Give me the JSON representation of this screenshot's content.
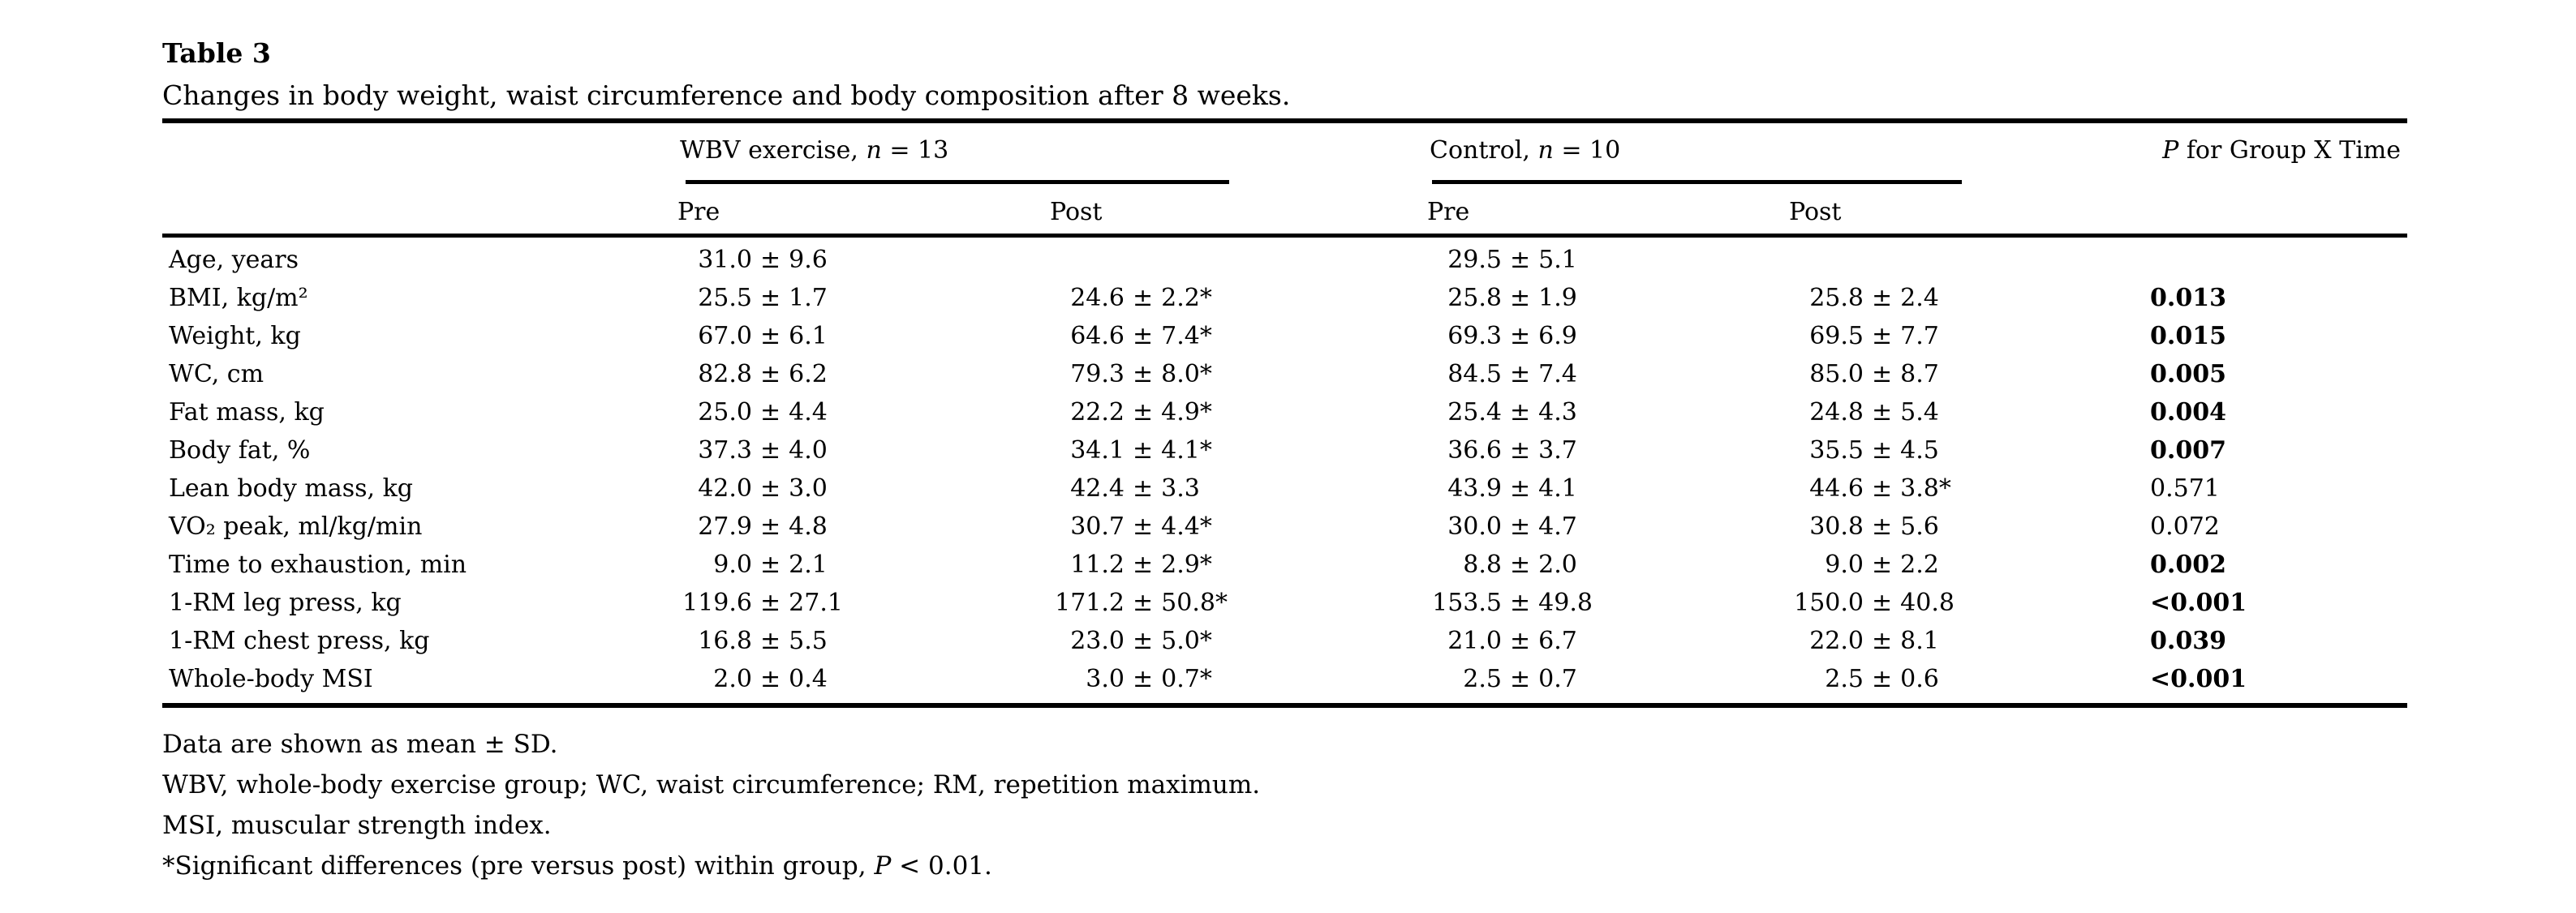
{
  "caption": {
    "label": "Table 3",
    "description": "Changes in body weight, waist circumference and body composition after 8 weeks."
  },
  "table": {
    "groups": [
      {
        "name_prefix": "WBV exercise, ",
        "n_symbol": "n",
        "n_value": " = 13"
      },
      {
        "name_prefix": "Control, ",
        "n_symbol": "n",
        "n_value": " = 10"
      }
    ],
    "p_header": {
      "symbol": "P",
      "rest": " for Group X Time"
    },
    "sub_headers": {
      "pre": "Pre",
      "post": "Post"
    },
    "rows": [
      {
        "label": "Age, years",
        "wbv_pre": "31.0 ± 9.6",
        "wbv_post": "",
        "ctrl_pre": "29.5 ± 5.1",
        "ctrl_post": "",
        "p": "",
        "p_bold": false
      },
      {
        "label": "BMI, kg/m²",
        "wbv_pre": "25.5 ± 1.7",
        "wbv_post": "24.6 ± 2.2*",
        "ctrl_pre": "25.8 ± 1.9",
        "ctrl_post": "25.8 ± 2.4",
        "p": "0.013",
        "p_bold": true
      },
      {
        "label": "Weight, kg",
        "wbv_pre": "67.0 ± 6.1",
        "wbv_post": "64.6 ± 7.4*",
        "ctrl_pre": "69.3 ± 6.9",
        "ctrl_post": "69.5 ± 7.7",
        "p": "0.015",
        "p_bold": true
      },
      {
        "label": "WC, cm",
        "wbv_pre": "82.8 ± 6.2",
        "wbv_post": "79.3 ± 8.0*",
        "ctrl_pre": "84.5 ± 7.4",
        "ctrl_post": "85.0 ± 8.7",
        "p": "0.005",
        "p_bold": true
      },
      {
        "label": "Fat mass, kg",
        "wbv_pre": "25.0 ± 4.4",
        "wbv_post": "22.2 ± 4.9*",
        "ctrl_pre": "25.4 ± 4.3",
        "ctrl_post": "24.8 ± 5.4",
        "p": "0.004",
        "p_bold": true
      },
      {
        "label": "Body fat, %",
        "wbv_pre": "37.3 ± 4.0",
        "wbv_post": "34.1 ± 4.1*",
        "ctrl_pre": "36.6 ± 3.7",
        "ctrl_post": "35.5 ± 4.5",
        "p": "0.007",
        "p_bold": true
      },
      {
        "label": "Lean body mass, kg",
        "wbv_pre": "42.0 ± 3.0",
        "wbv_post": "42.4 ± 3.3",
        "ctrl_pre": "43.9 ± 4.1",
        "ctrl_post": "44.6 ± 3.8*",
        "p": "0.571",
        "p_bold": false
      },
      {
        "label": "VO₂ peak, ml/kg/min",
        "wbv_pre": "27.9 ± 4.8",
        "wbv_post": "30.7 ± 4.4*",
        "ctrl_pre": "30.0 ± 4.7",
        "ctrl_post": "30.8 ± 5.6",
        "p": "0.072",
        "p_bold": false
      },
      {
        "label": "Time to exhaustion, min",
        "wbv_pre": "9.0 ± 2.1",
        "wbv_post": "11.2 ± 2.9*",
        "ctrl_pre": "8.8 ± 2.0",
        "ctrl_post": "9.0 ± 2.2",
        "p": "0.002",
        "p_bold": true
      },
      {
        "label": "1-RM leg press, kg",
        "wbv_pre": "119.6 ± 27.1",
        "wbv_post": "171.2 ± 50.8*",
        "ctrl_pre": "153.5 ± 49.8",
        "ctrl_post": "150.0 ± 40.8",
        "p": "<0.001",
        "p_bold": true
      },
      {
        "label": "1-RM chest press, kg",
        "wbv_pre": "16.8 ± 5.5",
        "wbv_post": "23.0 ± 5.0*",
        "ctrl_pre": "21.0 ± 6.7",
        "ctrl_post": "22.0 ± 8.1",
        "p": "0.039",
        "p_bold": true
      },
      {
        "label": "Whole-body MSI",
        "wbv_pre": "2.0 ± 0.4",
        "wbv_post": "3.0 ± 0.7*",
        "ctrl_pre": "2.5 ± 0.7",
        "ctrl_post": "2.5 ± 0.6",
        "p": "<0.001",
        "p_bold": true
      }
    ]
  },
  "footnotes": {
    "line1": "Data are shown as mean ± SD.",
    "line2": "WBV, whole-body exercise group; WC, waist circumference; RM, repetition maximum.",
    "line3": "MSI, muscular strength index.",
    "line4_prefix": "*Significant differences (pre versus post) within group, ",
    "line4_symbol": "P",
    "line4_suffix": " < 0.01."
  }
}
